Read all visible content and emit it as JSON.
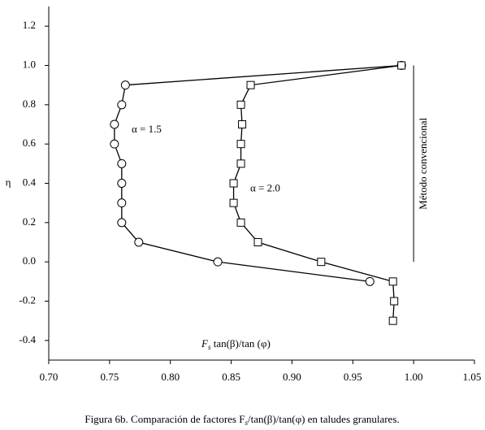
{
  "chart_data": {
    "type": "line",
    "y_label": "η",
    "x_label": {
      "main": "F",
      "sub": "s",
      "rest": " tan(β)/tan (φ)"
    },
    "caption": {
      "main": "Figura 6b. Comparación de factores F",
      "sub": "s",
      "rest": "/tan(β)/tan(φ) en taludes granulares."
    },
    "xlim": [
      0.7,
      1.05
    ],
    "ylim": [
      -0.5,
      1.3
    ],
    "xticks": [
      {
        "value": 0.7,
        "label": "0.70"
      },
      {
        "value": 0.75,
        "label": "0.75"
      },
      {
        "value": 0.8,
        "label": "0.80"
      },
      {
        "value": 0.85,
        "label": "0.85"
      },
      {
        "value": 0.9,
        "label": "0.90"
      },
      {
        "value": 0.95,
        "label": "0.95"
      },
      {
        "value": 1.0,
        "label": "1.00"
      },
      {
        "value": 1.05,
        "label": "1.05"
      }
    ],
    "yticks": [
      1.2,
      {
        "value": 1.0,
        "label": "1.0"
      },
      0.8,
      0.6,
      0.4,
      0.2,
      {
        "value": 0,
        "label": "0.0"
      },
      -0.2,
      -0.4
    ],
    "series": [
      {
        "name": "α = 1.5",
        "marker": "circle",
        "color": "#000000",
        "x": [
          0.99,
          0.763,
          0.76,
          0.754,
          0.754,
          0.76,
          0.76,
          0.76,
          0.76,
          0.774,
          0.839,
          0.964
        ],
        "y": [
          1.0,
          0.9,
          0.8,
          0.7,
          0.6,
          0.5,
          0.4,
          0.3,
          0.2,
          0.1,
          0.0,
          -0.1
        ]
      },
      {
        "name": "α = 2.0",
        "marker": "square",
        "color": "#000000",
        "x": [
          0.99,
          0.866,
          0.858,
          0.859,
          0.858,
          0.858,
          0.852,
          0.852,
          0.858,
          0.872,
          0.924,
          0.983,
          0.984,
          0.983
        ],
        "y": [
          1.0,
          0.9,
          0.8,
          0.7,
          0.6,
          0.5,
          0.4,
          0.3,
          0.2,
          0.1,
          0.0,
          -0.1,
          -0.2,
          -0.3
        ]
      }
    ],
    "reference_line": {
      "label": "Método convencional",
      "x": 1.0,
      "y": [
        0.0,
        1.0
      ]
    }
  }
}
